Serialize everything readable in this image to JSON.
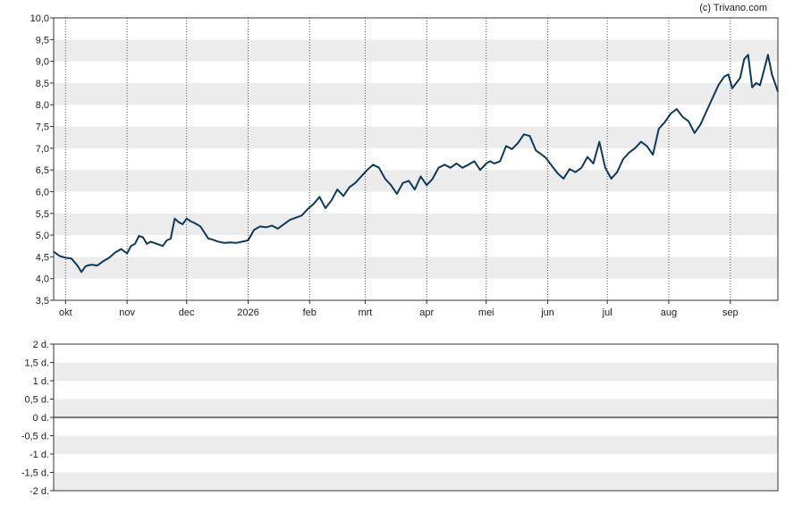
{
  "copyright": "(c) Trivano.com",
  "chart_data": [
    {
      "type": "line",
      "ylim": [
        3.5,
        10.0
      ],
      "yticks": [
        "3,5",
        "4,0",
        "4,5",
        "5,0",
        "5,5",
        "6,0",
        "6,5",
        "7,0",
        "7,5",
        "8,0",
        "8,5",
        "9,0",
        "9,5",
        "10,0"
      ],
      "xlim": [
        "2025-09-25",
        "2026-09-25"
      ],
      "xticks": [
        {
          "date": "2025-10-01",
          "label": "okt"
        },
        {
          "date": "2025-11-01",
          "label": "nov"
        },
        {
          "date": "2025-12-01",
          "label": "dec"
        },
        {
          "date": "2026-01-01",
          "label": "2026"
        },
        {
          "date": "2026-02-01",
          "label": "feb"
        },
        {
          "date": "2026-03-01",
          "label": "mrt"
        },
        {
          "date": "2026-04-01",
          "label": "apr"
        },
        {
          "date": "2026-05-01",
          "label": "mei"
        },
        {
          "date": "2026-06-01",
          "label": "jun"
        },
        {
          "date": "2026-07-01",
          "label": "jul"
        },
        {
          "date": "2026-08-01",
          "label": "aug"
        },
        {
          "date": "2026-09-01",
          "label": "sep"
        }
      ],
      "grid": "horizontal bands, vertical dotted lines at months",
      "line_color": "#0e3a5b",
      "series": [
        {
          "x": [
            "2025-09-25",
            "2025-09-28",
            "2025-10-01",
            "2025-10-04",
            "2025-10-07",
            "2025-10-09",
            "2025-10-11",
            "2025-10-12",
            "2025-10-14",
            "2025-10-17",
            "2025-10-20",
            "2025-10-23",
            "2025-10-26",
            "2025-10-29",
            "2025-11-01",
            "2025-11-03",
            "2025-11-05",
            "2025-11-07",
            "2025-11-09",
            "2025-11-11",
            "2025-11-13",
            "2025-11-16",
            "2025-11-19",
            "2025-11-21",
            "2025-11-23",
            "2025-11-25",
            "2025-11-27",
            "2025-11-29",
            "2025-12-01",
            "2025-12-03",
            "2025-12-05",
            "2025-12-08",
            "2025-12-12",
            "2025-12-14",
            "2025-12-17",
            "2025-12-20",
            "2025-12-23",
            "2025-12-26",
            "2025-12-29",
            "2026-01-01",
            "2026-01-04",
            "2026-01-07",
            "2026-01-10",
            "2026-01-13",
            "2026-01-16",
            "2026-01-19",
            "2026-01-22",
            "2026-01-25",
            "2026-01-28",
            "2026-01-31",
            "2026-02-03",
            "2026-02-06",
            "2026-02-09",
            "2026-02-12",
            "2026-02-15",
            "2026-02-18",
            "2026-02-21",
            "2026-02-24",
            "2026-02-27",
            "2026-03-02",
            "2026-03-05",
            "2026-03-08",
            "2026-03-11",
            "2026-03-14",
            "2026-03-17",
            "2026-03-20",
            "2026-03-23",
            "2026-03-26",
            "2026-03-29",
            "2026-04-01",
            "2026-04-04",
            "2026-04-07",
            "2026-04-10",
            "2026-04-13",
            "2026-04-16",
            "2026-04-19",
            "2026-04-22",
            "2026-04-25",
            "2026-04-28",
            "2026-05-01",
            "2026-05-03",
            "2026-05-05",
            "2026-05-08",
            "2026-05-11",
            "2026-05-14",
            "2026-05-17",
            "2026-05-20",
            "2026-05-23",
            "2026-05-26",
            "2026-05-29",
            "2026-05-31",
            "2026-06-03",
            "2026-06-06",
            "2026-06-09",
            "2026-06-12",
            "2026-06-15",
            "2026-06-18",
            "2026-06-21",
            "2026-06-24",
            "2026-06-27",
            "2026-06-30",
            "2026-07-03",
            "2026-07-06",
            "2026-07-09",
            "2026-07-12",
            "2026-07-15",
            "2026-07-18",
            "2026-07-21",
            "2026-07-24",
            "2026-07-27",
            "2026-07-30",
            "2026-08-02",
            "2026-08-05",
            "2026-08-08",
            "2026-08-11",
            "2026-08-14",
            "2026-08-17",
            "2026-08-20",
            "2026-08-23",
            "2026-08-26",
            "2026-08-29",
            "2026-08-31",
            "2026-09-02",
            "2026-09-04",
            "2026-09-06",
            "2026-09-08",
            "2026-09-10",
            "2026-09-12",
            "2026-09-14",
            "2026-09-16",
            "2026-09-18",
            "2026-09-20",
            "2026-09-22",
            "2026-09-25"
          ],
          "values": [
            4.62,
            4.52,
            4.48,
            4.46,
            4.3,
            4.15,
            4.28,
            4.3,
            4.32,
            4.3,
            4.4,
            4.48,
            4.6,
            4.68,
            4.58,
            4.75,
            4.8,
            4.98,
            4.95,
            4.8,
            4.85,
            4.8,
            4.75,
            4.88,
            4.92,
            5.38,
            5.3,
            5.25,
            5.38,
            5.32,
            5.28,
            5.2,
            4.92,
            4.9,
            4.85,
            4.82,
            4.83,
            4.82,
            4.85,
            4.88,
            5.12,
            5.2,
            5.18,
            5.22,
            5.15,
            5.25,
            5.35,
            5.4,
            5.45,
            5.6,
            5.72,
            5.88,
            5.62,
            5.8,
            6.05,
            5.9,
            6.1,
            6.2,
            6.35,
            6.5,
            6.62,
            6.55,
            6.3,
            6.15,
            5.95,
            6.2,
            6.25,
            6.05,
            6.35,
            6.15,
            6.3,
            6.55,
            6.62,
            6.55,
            6.65,
            6.55,
            6.62,
            6.7,
            6.5,
            6.65,
            6.7,
            6.65,
            6.7,
            7.05,
            6.98,
            7.12,
            7.32,
            7.28,
            6.95,
            6.85,
            6.78,
            6.6,
            6.42,
            6.3,
            6.52,
            6.45,
            6.55,
            6.8,
            6.65,
            7.15,
            6.55,
            6.3,
            6.45,
            6.75,
            6.9,
            7.0,
            7.15,
            7.05,
            6.85,
            7.45,
            7.6,
            7.8,
            7.9,
            7.72,
            7.62,
            7.35,
            7.55,
            7.85,
            8.15,
            8.45,
            8.65,
            8.7,
            8.38,
            8.5,
            8.62,
            9.05,
            9.15,
            8.4,
            8.5,
            8.45,
            8.8,
            9.15,
            8.7,
            8.3
          ],
          "comment": ""
        }
      ]
    },
    {
      "type": "line",
      "ylim": [
        -2,
        2
      ],
      "yticks": [
        "2 d.",
        "1,5 d.",
        "1 d.",
        "0,5 d.",
        "0 d.",
        "-0,5 d.",
        "-1 d.",
        "-1,5 d.",
        "-2 d."
      ],
      "grid": "horizontal bands",
      "baseline": 0,
      "series": []
    }
  ]
}
